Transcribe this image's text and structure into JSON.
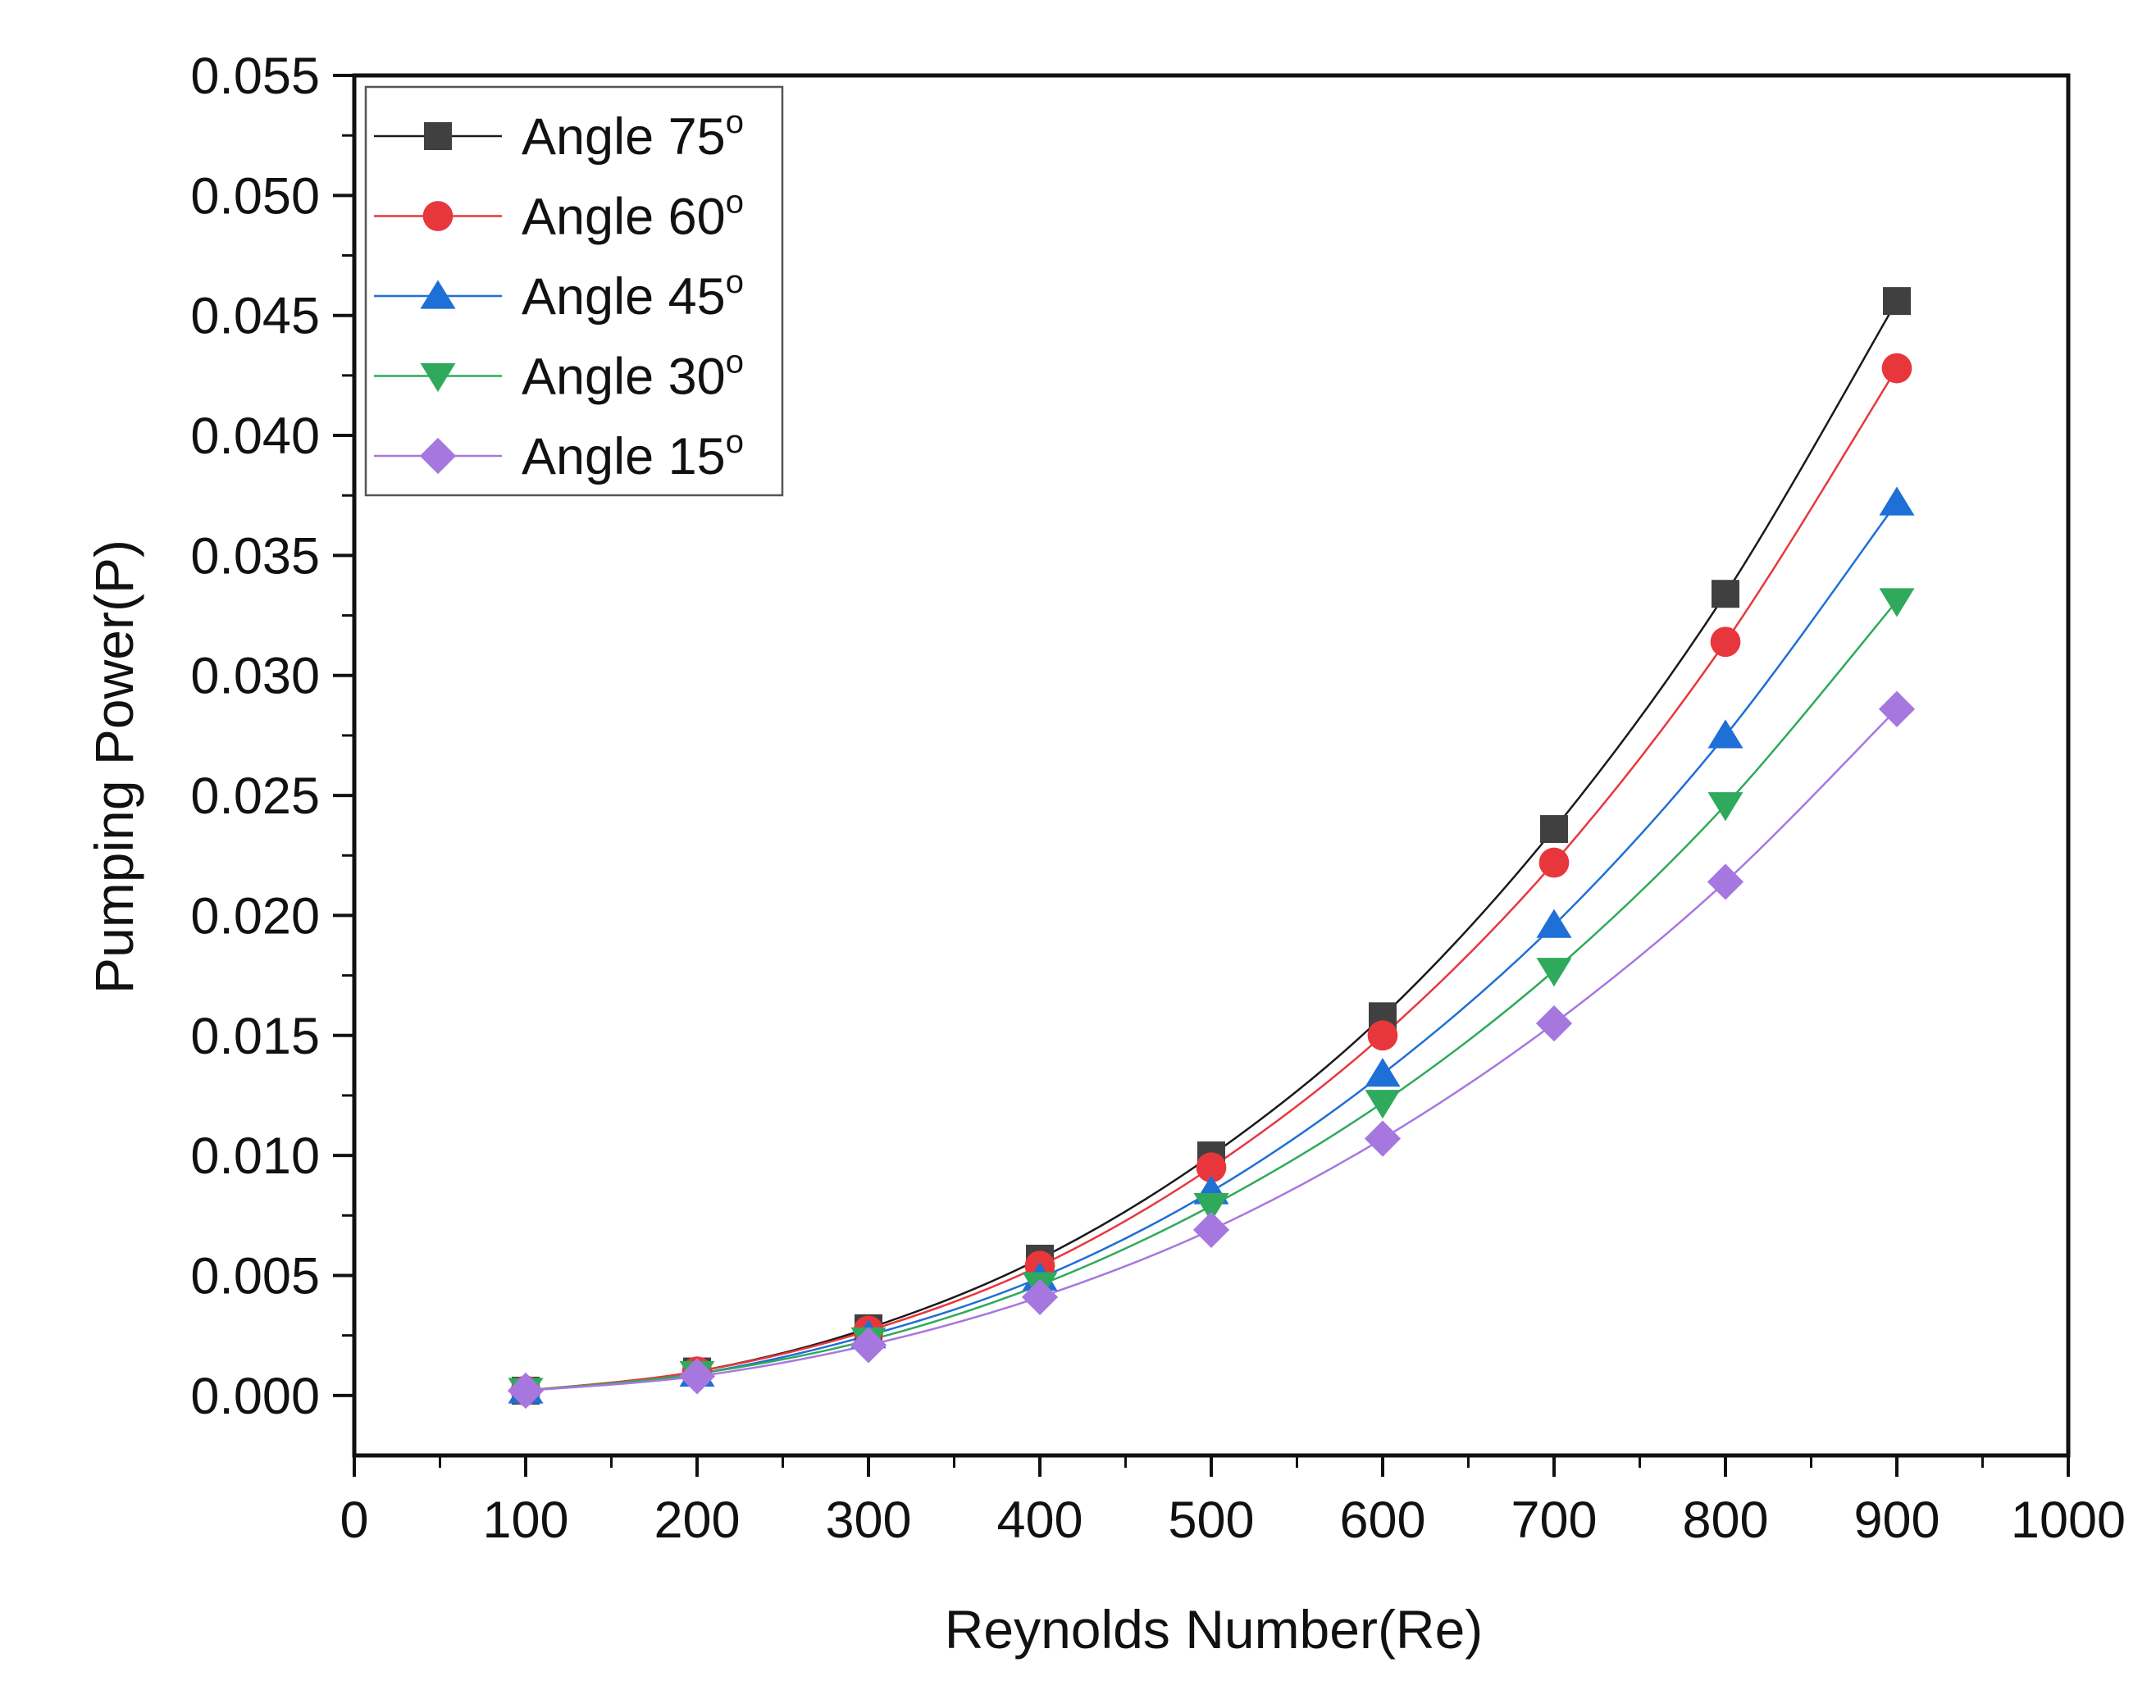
{
  "chart_data": {
    "type": "line",
    "title": "",
    "xlabel": "Reynolds Number(Re)",
    "ylabel": "Pumping Power(P)",
    "xlim": [
      0,
      1000
    ],
    "ylim": [
      -0.0025,
      0.055
    ],
    "x_ticks": [
      "0",
      "100",
      "200",
      "300",
      "400",
      "500",
      "600",
      "700",
      "800",
      "900",
      "1000"
    ],
    "y_ticks": [
      "0.000",
      "0.005",
      "0.010",
      "0.015",
      "0.020",
      "0.025",
      "0.030",
      "0.035",
      "0.040",
      "0.045",
      "0.050",
      "0.055"
    ],
    "x": [
      100,
      200,
      300,
      400,
      500,
      600,
      700,
      800,
      900
    ],
    "legend_position": "top-left",
    "legend_degree_mark": "o",
    "series": [
      {
        "name": "Angle 75",
        "marker": "square",
        "color": "#404040",
        "line_color": "#1a1a1a",
        "values": [
          0.0002,
          0.001,
          0.0028,
          0.0057,
          0.01,
          0.0158,
          0.0236,
          0.0334,
          0.0456
        ]
      },
      {
        "name": "Angle 60",
        "marker": "circle",
        "color": "#e8373c",
        "line_color": "#e8373c",
        "values": [
          0.0002,
          0.001,
          0.0027,
          0.0054,
          0.0095,
          0.015,
          0.0222,
          0.0314,
          0.0428
        ]
      },
      {
        "name": "Angle 45",
        "marker": "triangle-up",
        "color": "#1e6fd6",
        "line_color": "#1e6fd6",
        "values": [
          0.0002,
          0.0009,
          0.0025,
          0.0049,
          0.0085,
          0.0134,
          0.0196,
          0.0275,
          0.0372
        ]
      },
      {
        "name": "Angle 30",
        "marker": "triangle-down",
        "color": "#2faa5c",
        "line_color": "#2faa5c",
        "values": [
          0.0002,
          0.0009,
          0.0023,
          0.0046,
          0.0079,
          0.0122,
          0.0177,
          0.0246,
          0.0331
        ]
      },
      {
        "name": "Angle 15",
        "marker": "diamond",
        "color": "#a777e0",
        "line_color": "#a777e0",
        "values": [
          0.0002,
          0.0008,
          0.0021,
          0.0041,
          0.0069,
          0.0107,
          0.0155,
          0.0214,
          0.0286
        ]
      }
    ]
  }
}
